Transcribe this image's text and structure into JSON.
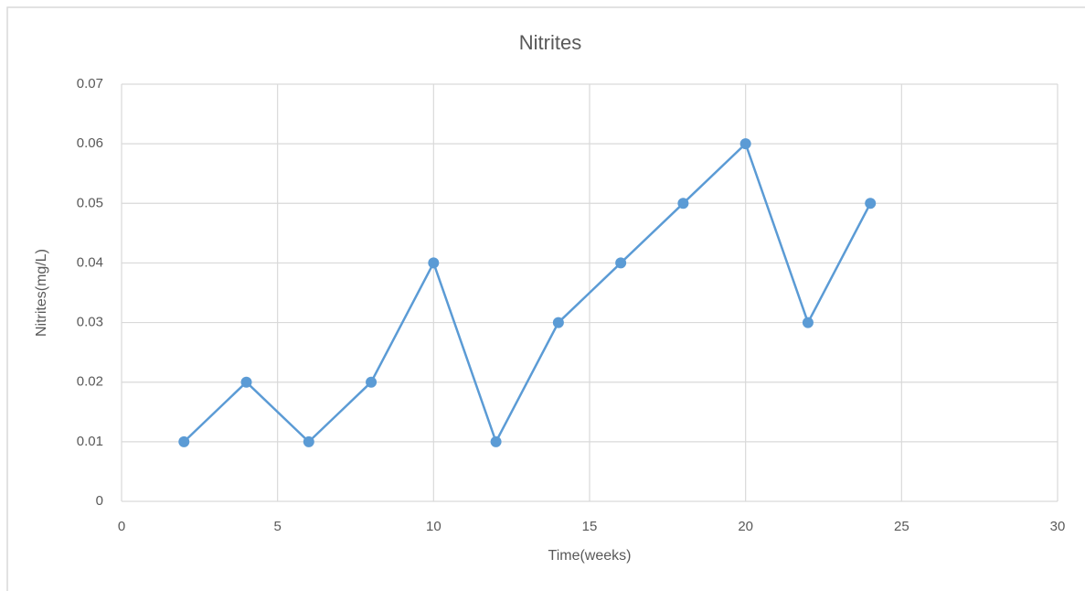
{
  "chart_data": {
    "type": "line",
    "title": "Nitrites",
    "x_label": "Time(weeks)",
    "y_label": "Nitrites(mg/L)",
    "x": [
      2,
      4,
      6,
      8,
      10,
      12,
      14,
      16,
      18,
      20,
      22,
      24
    ],
    "series": [
      {
        "name": "Nitrites",
        "color": "#5b9bd5",
        "values": [
          0.01,
          0.02,
          0.01,
          0.02,
          0.04,
          0.01,
          0.03,
          0.04,
          0.05,
          0.06,
          0.03,
          0.05
        ]
      }
    ],
    "xlim": [
      0,
      30
    ],
    "xticks": [
      0,
      5,
      10,
      15,
      20,
      25,
      30
    ],
    "ylim": [
      0,
      0.07
    ],
    "yticks": [
      0,
      0.01,
      0.02,
      0.03,
      0.04,
      0.05,
      0.06,
      0.07
    ],
    "grid": true,
    "markers": true
  }
}
